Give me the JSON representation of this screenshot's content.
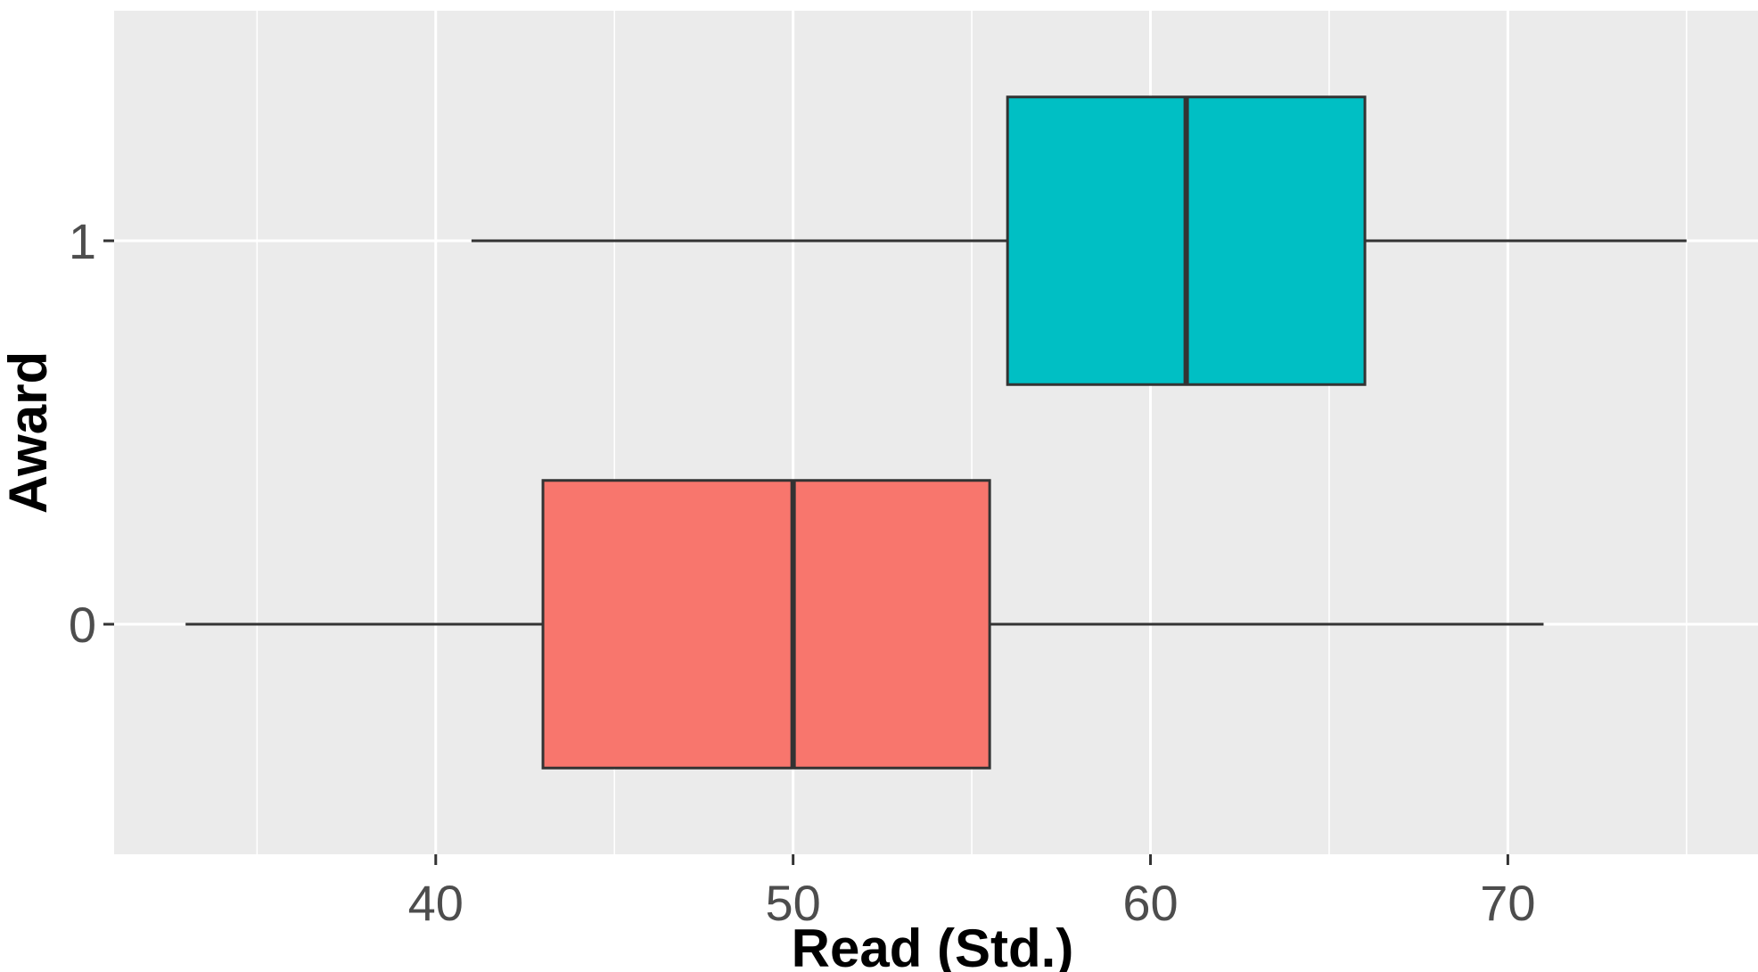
{
  "chart_data": {
    "type": "boxplot",
    "orientation": "horizontal",
    "title": "",
    "xlabel": "Read (Std.)",
    "ylabel": "Award",
    "xlim": [
      31,
      77
    ],
    "xticks": [
      40,
      50,
      60,
      70
    ],
    "categories": [
      "0",
      "1"
    ],
    "boxes": [
      {
        "category": "0",
        "whisker_low": 33,
        "q1": 43,
        "median": 50,
        "q3": 55.5,
        "whisker_high": 71,
        "color": "#F8766D"
      },
      {
        "category": "1",
        "whisker_low": 41,
        "q1": 56,
        "median": 61,
        "q3": 66,
        "whisker_high": 75,
        "color": "#00BFC4"
      }
    ],
    "grid": true,
    "legend": "none",
    "panel_background": "#EBEBEB"
  }
}
